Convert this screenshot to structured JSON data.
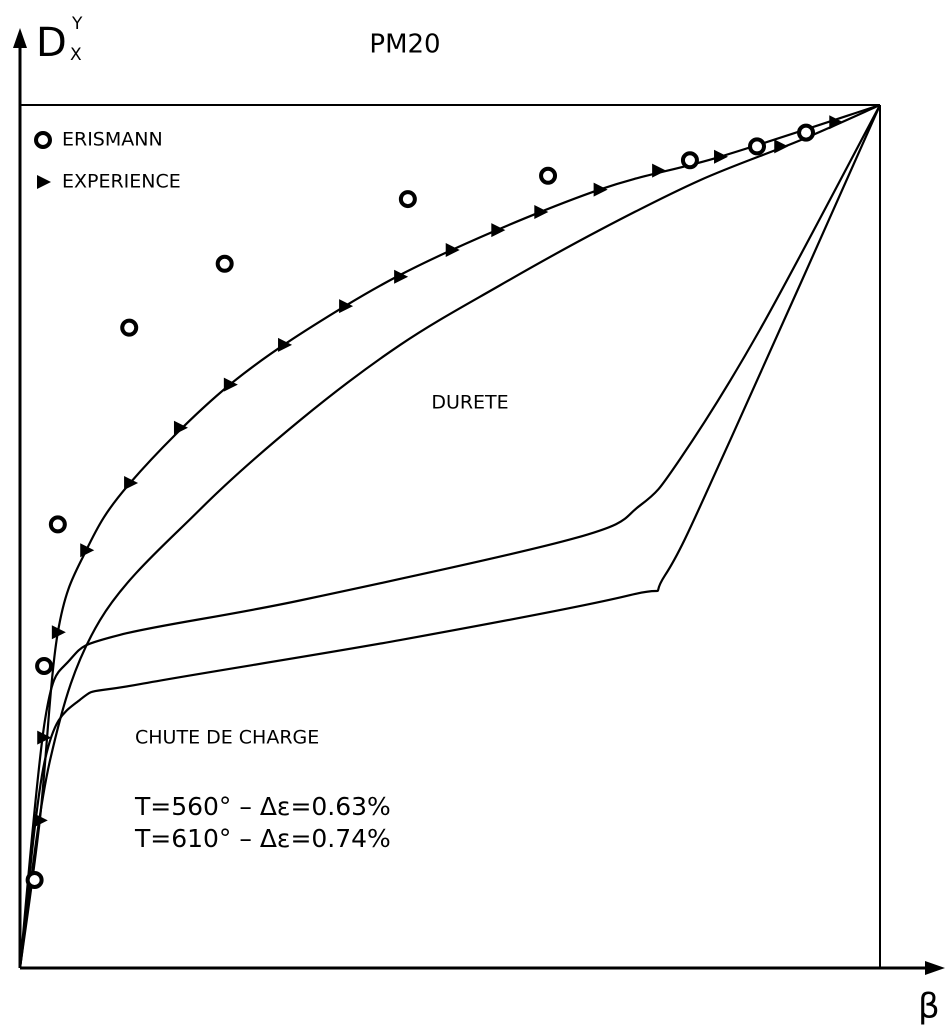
{
  "chart_data": {
    "type": "scatter",
    "title": "PM20",
    "y_label": "D",
    "y_label_sup": "Y",
    "y_label_sub": "X",
    "x_label": "β",
    "xlim": [
      0,
      1
    ],
    "ylim": [
      0,
      1
    ],
    "legend": "upper left",
    "series": [
      {
        "name": "ERISMANN",
        "color": "#000000",
        "marker": "circle",
        "x": [
          0.017,
          0.028,
          0.044,
          0.127,
          0.238,
          0.451,
          0.614,
          0.779,
          0.857,
          0.914
        ],
        "values": [
          0.102,
          0.35,
          0.514,
          0.742,
          0.816,
          0.891,
          0.918,
          0.936,
          0.952,
          0.968
        ]
      },
      {
        "name": "EXPERIENCE",
        "color": "#000000",
        "marker": "triangle",
        "x": [
          0.023,
          0.027,
          0.044,
          0.077,
          0.128,
          0.186,
          0.244,
          0.307,
          0.378,
          0.442,
          0.502,
          0.555,
          0.605,
          0.674,
          0.742,
          0.814,
          0.884,
          0.948
        ],
        "values": [
          0.171,
          0.267,
          0.389,
          0.484,
          0.562,
          0.626,
          0.676,
          0.722,
          0.767,
          0.801,
          0.832,
          0.855,
          0.876,
          0.902,
          0.924,
          0.94,
          0.952,
          0.98
        ]
      }
    ],
    "lines": [
      {
        "color": "#000000",
        "x": [
          0,
          0.023,
          0.044,
          0.077,
          0.128,
          0.244,
          0.378,
          0.502,
          0.674,
          0.814,
          1
        ],
        "values": [
          0,
          0.171,
          0.389,
          0.484,
          0.562,
          0.676,
          0.767,
          0.832,
          0.902,
          0.94,
          1
        ]
      },
      {
        "color": "#000000",
        "x": [
          0,
          0.035,
          0.093,
          0.209,
          0.326,
          0.442,
          0.558,
          0.674,
          0.791,
          0.907,
          1
        ],
        "values": [
          0,
          0.241,
          0.403,
          0.531,
          0.635,
          0.722,
          0.791,
          0.855,
          0.913,
          0.959,
          1
        ]
      },
      {
        "color": "#000000",
        "x": [
          0,
          0.029,
          0.058,
          0.116,
          0.326,
          0.645,
          0.721,
          0.767,
          0.86,
          1
        ],
        "values": [
          0,
          0.287,
          0.357,
          0.386,
          0.426,
          0.498,
          0.536,
          0.589,
          0.739,
          1
        ]
      },
      {
        "color": "#000000",
        "x": [
          0,
          0.029,
          0.07,
          0.14,
          0.442,
          0.709,
          0.75,
          0.826,
          1
        ],
        "values": [
          0,
          0.241,
          0.311,
          0.329,
          0.38,
          0.432,
          0.455,
          0.612,
          1
        ]
      }
    ],
    "annotations": [
      "DURETE",
      "CHUTE DE CHARGE",
      "T=560° – Δε=0.63%",
      "T=610° – Δε=0.74%"
    ]
  }
}
